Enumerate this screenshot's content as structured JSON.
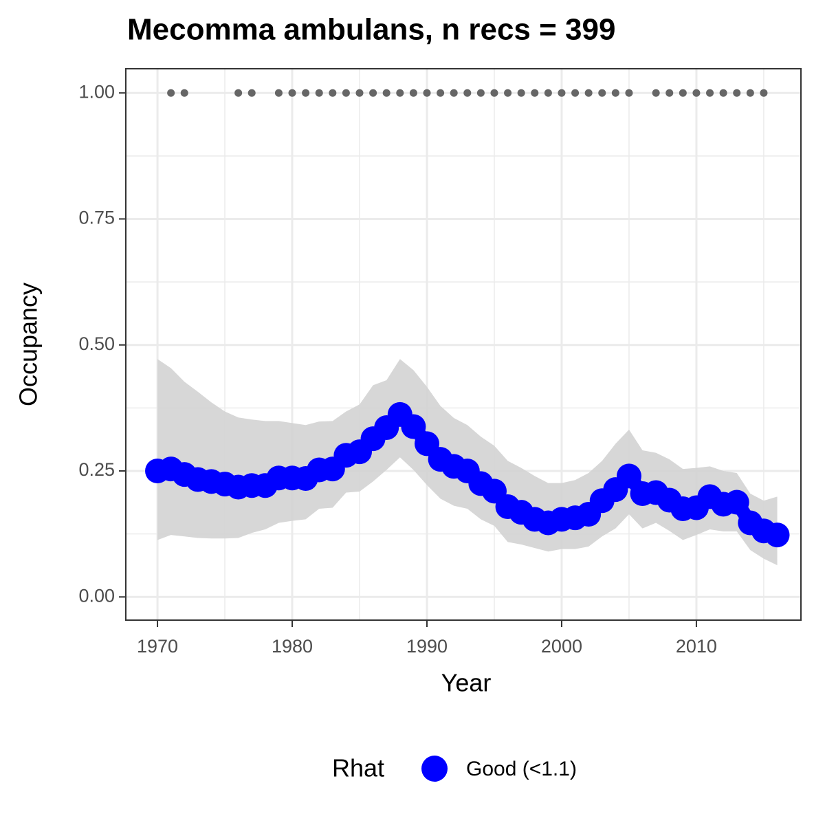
{
  "chart_data": {
    "type": "line",
    "title": "Mecomma ambulans, n recs = 399",
    "xlabel": "Year",
    "ylabel": "Occupancy",
    "legend_title": "Rhat",
    "legend_position": "bottom",
    "grid": true,
    "xlim": [
      1967.65,
      2017.76
    ],
    "ylim": [
      -0.046,
      1.048
    ],
    "xticks": [
      1970,
      1980,
      1990,
      2000,
      2010
    ],
    "yticks": [
      {
        "value": 0,
        "label": "0.00"
      },
      {
        "value": 0.25,
        "label": "0.25"
      },
      {
        "value": 0.5,
        "label": "0.50"
      },
      {
        "value": 0.75,
        "label": "0.75"
      },
      {
        "value": 1,
        "label": "1.00"
      }
    ],
    "xminor": [
      1975,
      1985,
      1995,
      2005,
      2015
    ],
    "yminor": [
      0.125,
      0.375,
      0.625,
      0.875
    ],
    "x": [
      1970,
      1971,
      1972,
      1973,
      1974,
      1975,
      1976,
      1977,
      1978,
      1979,
      1980,
      1981,
      1982,
      1983,
      1984,
      1985,
      1986,
      1987,
      1988,
      1989,
      1990,
      1991,
      1992,
      1993,
      1994,
      1995,
      1996,
      1997,
      1998,
      1999,
      2000,
      2001,
      2002,
      2003,
      2004,
      2005,
      2006,
      2007,
      2008,
      2009,
      2010,
      2011,
      2012,
      2013,
      2014,
      2015,
      2016
    ],
    "series": [
      {
        "name": "Good (<1.1)",
        "color": "#0000ff",
        "band_color": "#d3d3d3",
        "values": [
          0.25,
          0.254,
          0.243,
          0.233,
          0.229,
          0.224,
          0.218,
          0.221,
          0.221,
          0.236,
          0.236,
          0.235,
          0.252,
          0.254,
          0.281,
          0.288,
          0.314,
          0.336,
          0.362,
          0.338,
          0.304,
          0.273,
          0.259,
          0.25,
          0.225,
          0.21,
          0.179,
          0.168,
          0.154,
          0.147,
          0.154,
          0.157,
          0.164,
          0.191,
          0.213,
          0.24,
          0.205,
          0.207,
          0.192,
          0.175,
          0.177,
          0.199,
          0.184,
          0.188,
          0.147,
          0.131,
          0.123
        ],
        "upper": [
          0.472,
          0.454,
          0.427,
          0.407,
          0.386,
          0.368,
          0.356,
          0.352,
          0.349,
          0.349,
          0.345,
          0.341,
          0.348,
          0.349,
          0.368,
          0.382,
          0.42,
          0.43,
          0.472,
          0.45,
          0.417,
          0.379,
          0.355,
          0.341,
          0.318,
          0.3,
          0.27,
          0.256,
          0.24,
          0.226,
          0.226,
          0.232,
          0.246,
          0.27,
          0.304,
          0.332,
          0.291,
          0.286,
          0.273,
          0.254,
          0.256,
          0.259,
          0.25,
          0.246,
          0.205,
          0.191,
          0.199
        ],
        "lower": [
          0.113,
          0.123,
          0.12,
          0.117,
          0.116,
          0.116,
          0.117,
          0.127,
          0.134,
          0.147,
          0.151,
          0.154,
          0.175,
          0.177,
          0.207,
          0.209,
          0.229,
          0.252,
          0.277,
          0.252,
          0.222,
          0.195,
          0.181,
          0.175,
          0.154,
          0.141,
          0.109,
          0.104,
          0.097,
          0.09,
          0.095,
          0.095,
          0.1,
          0.12,
          0.136,
          0.164,
          0.136,
          0.147,
          0.131,
          0.113,
          0.123,
          0.134,
          0.13,
          0.13,
          0.093,
          0.076,
          0.063
        ]
      }
    ],
    "records": {
      "color": "#666666",
      "x": [
        1971,
        1972,
        1976,
        1977,
        1979,
        1980,
        1981,
        1982,
        1983,
        1984,
        1985,
        1986,
        1987,
        1988,
        1989,
        1990,
        1991,
        1992,
        1993,
        1994,
        1995,
        1996,
        1997,
        1998,
        1999,
        2000,
        2001,
        2002,
        2003,
        2004,
        2005,
        2007,
        2008,
        2009,
        2010,
        2011,
        2012,
        2013,
        2014,
        2015
      ],
      "y": [
        1,
        1,
        1,
        1,
        1,
        1,
        1,
        1,
        1,
        1,
        1,
        1,
        1,
        1,
        1,
        1,
        1,
        1,
        1,
        1,
        1,
        1,
        1,
        1,
        1,
        1,
        1,
        1,
        1,
        1,
        1,
        1,
        1,
        1,
        1,
        1,
        1,
        1,
        1,
        1
      ]
    }
  }
}
